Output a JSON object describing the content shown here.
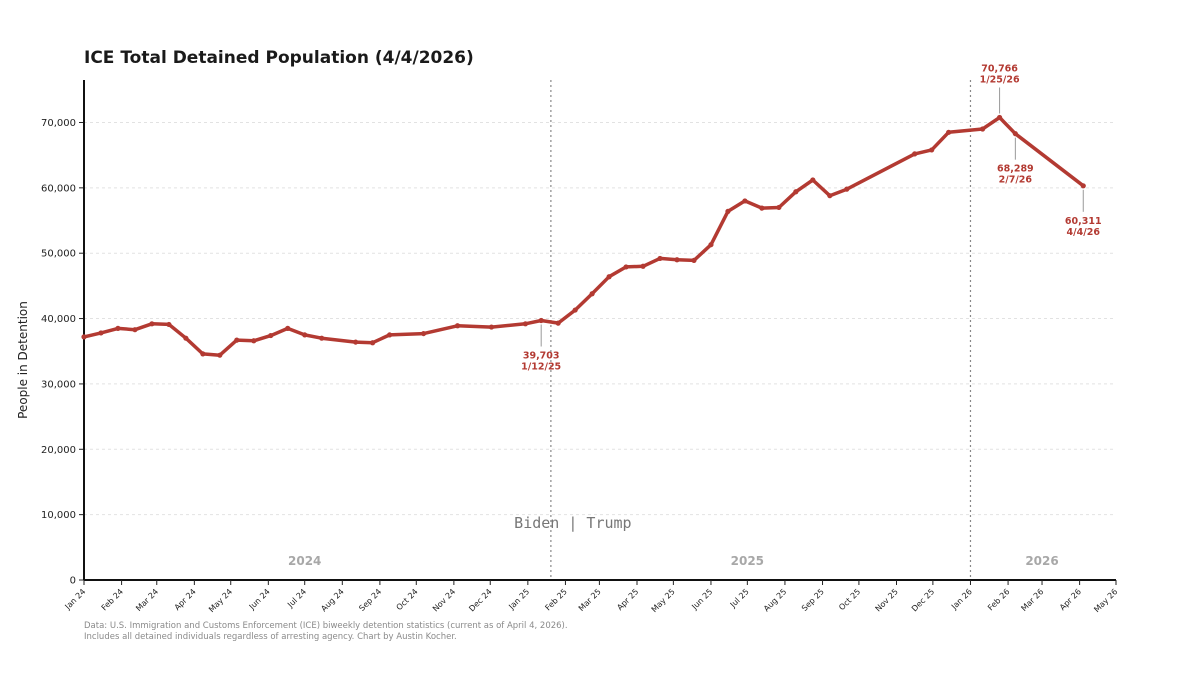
{
  "title": "ICE Total Detained Population (4/4/2026)",
  "source": {
    "line1": "Data: U.S. Immigration and Customs Enforcement (ICE) biweekly detention statistics (current as of April 4, 2026).",
    "line2": "Includes all detained individuals regardless of arresting agency. Chart by Austin Kocher."
  },
  "chart_data": {
    "type": "line",
    "title": "ICE Total Detained Population (4/4/2026)",
    "ylabel": "People in Detention",
    "xlabel": "",
    "ylim": [
      0,
      76500
    ],
    "xlim": [
      "2024-01-01",
      "2026-05-01"
    ],
    "yticks": [
      0,
      10000,
      20000,
      30000,
      40000,
      50000,
      60000,
      70000
    ],
    "ytick_labels": [
      "0",
      "10,000",
      "20,000",
      "30,000",
      "40,000",
      "50,000",
      "60,000",
      "70,000"
    ],
    "xticks": [
      {
        "date": "2024-01-01",
        "label": "Jan 24"
      },
      {
        "date": "2024-02-01",
        "label": "Feb 24"
      },
      {
        "date": "2024-03-01",
        "label": "Mar 24"
      },
      {
        "date": "2024-04-01",
        "label": "Apr 24"
      },
      {
        "date": "2024-05-01",
        "label": "May 24"
      },
      {
        "date": "2024-06-01",
        "label": "Jun 24"
      },
      {
        "date": "2024-07-01",
        "label": "Jul 24"
      },
      {
        "date": "2024-08-01",
        "label": "Aug 24"
      },
      {
        "date": "2024-09-01",
        "label": "Sep 24"
      },
      {
        "date": "2024-10-01",
        "label": "Oct 24"
      },
      {
        "date": "2024-11-01",
        "label": "Nov 24"
      },
      {
        "date": "2024-12-01",
        "label": "Dec 24"
      },
      {
        "date": "2025-01-01",
        "label": "Jan 25"
      },
      {
        "date": "2025-02-01",
        "label": "Feb 25"
      },
      {
        "date": "2025-03-01",
        "label": "Mar 25"
      },
      {
        "date": "2025-04-01",
        "label": "Apr 25"
      },
      {
        "date": "2025-05-01",
        "label": "May 25"
      },
      {
        "date": "2025-06-01",
        "label": "Jun 25"
      },
      {
        "date": "2025-07-01",
        "label": "Jul 25"
      },
      {
        "date": "2025-08-01",
        "label": "Aug 25"
      },
      {
        "date": "2025-09-01",
        "label": "Sep 25"
      },
      {
        "date": "2025-10-01",
        "label": "Oct 25"
      },
      {
        "date": "2025-11-01",
        "label": "Nov 25"
      },
      {
        "date": "2025-12-01",
        "label": "Dec 25"
      },
      {
        "date": "2026-01-01",
        "label": "Jan 26"
      },
      {
        "date": "2026-02-01",
        "label": "Feb 26"
      },
      {
        "date": "2026-03-01",
        "label": "Mar 26"
      },
      {
        "date": "2026-04-01",
        "label": "Apr 26"
      },
      {
        "date": "2026-05-01",
        "label": "May 26"
      }
    ],
    "grid": true,
    "line_color": "#b33a32",
    "series": [
      {
        "points": [
          {
            "x": "2024-01-01",
            "y": 37200
          },
          {
            "x": "2024-01-15",
            "y": 37800
          },
          {
            "x": "2024-01-29",
            "y": 38500
          },
          {
            "x": "2024-02-12",
            "y": 38300
          },
          {
            "x": "2024-02-26",
            "y": 39200
          },
          {
            "x": "2024-03-11",
            "y": 39100
          },
          {
            "x": "2024-03-25",
            "y": 37000
          },
          {
            "x": "2024-04-08",
            "y": 34600
          },
          {
            "x": "2024-04-22",
            "y": 34400
          },
          {
            "x": "2024-05-06",
            "y": 36700
          },
          {
            "x": "2024-05-20",
            "y": 36600
          },
          {
            "x": "2024-06-03",
            "y": 37400
          },
          {
            "x": "2024-06-17",
            "y": 38500
          },
          {
            "x": "2024-07-01",
            "y": 37500
          },
          {
            "x": "2024-07-15",
            "y": 37000
          },
          {
            "x": "2024-08-12",
            "y": 36400
          },
          {
            "x": "2024-08-26",
            "y": 36300
          },
          {
            "x": "2024-09-09",
            "y": 37500
          },
          {
            "x": "2024-10-07",
            "y": 37700
          },
          {
            "x": "2024-11-04",
            "y": 38900
          },
          {
            "x": "2024-12-02",
            "y": 38700
          },
          {
            "x": "2024-12-30",
            "y": 39200
          },
          {
            "x": "2025-01-12",
            "y": 39703
          },
          {
            "x": "2025-01-26",
            "y": 39300
          },
          {
            "x": "2025-02-09",
            "y": 41300
          },
          {
            "x": "2025-02-23",
            "y": 43800
          },
          {
            "x": "2025-03-09",
            "y": 46400
          },
          {
            "x": "2025-03-23",
            "y": 47900
          },
          {
            "x": "2025-04-06",
            "y": 48000
          },
          {
            "x": "2025-04-20",
            "y": 49200
          },
          {
            "x": "2025-05-04",
            "y": 49000
          },
          {
            "x": "2025-05-18",
            "y": 48900
          },
          {
            "x": "2025-06-01",
            "y": 51300
          },
          {
            "x": "2025-06-15",
            "y": 56400
          },
          {
            "x": "2025-06-29",
            "y": 58000
          },
          {
            "x": "2025-07-13",
            "y": 56900
          },
          {
            "x": "2025-07-27",
            "y": 57000
          },
          {
            "x": "2025-08-10",
            "y": 59400
          },
          {
            "x": "2025-08-24",
            "y": 61200
          },
          {
            "x": "2025-09-07",
            "y": 58800
          },
          {
            "x": "2025-09-21",
            "y": 59800
          },
          {
            "x": "2025-11-16",
            "y": 65200
          },
          {
            "x": "2025-11-30",
            "y": 65800
          },
          {
            "x": "2025-12-14",
            "y": 68500
          },
          {
            "x": "2026-01-11",
            "y": 69000
          },
          {
            "x": "2026-01-25",
            "y": 70766
          },
          {
            "x": "2026-02-07",
            "y": 68289
          },
          {
            "x": "2026-04-04",
            "y": 60311
          }
        ]
      }
    ],
    "vlines": [
      {
        "x": "2025-01-20"
      },
      {
        "x": "2026-01-01"
      }
    ],
    "annotations": [
      {
        "id": "ann-jan25",
        "x": "2025-01-12",
        "y": 39703,
        "value": "39,703",
        "date": "1/12/25",
        "position": "below"
      },
      {
        "id": "ann-peak",
        "x": "2026-01-25",
        "y": 70766,
        "value": "70,766",
        "date": "1/25/26",
        "position": "above"
      },
      {
        "id": "ann-feb26",
        "x": "2026-02-07",
        "y": 68289,
        "value": "68,289",
        "date": "2/7/26",
        "position": "below"
      },
      {
        "id": "ann-apr26",
        "x": "2026-04-04",
        "y": 60311,
        "value": "60,311",
        "date": "4/4/26",
        "position": "below"
      }
    ],
    "era_label": "Biden  |  Trump",
    "year_labels": [
      {
        "text": "2024",
        "x": "2024-07-01"
      },
      {
        "text": "2025",
        "x": "2025-07-01"
      },
      {
        "text": "2026",
        "x": "2026-03-01"
      }
    ]
  }
}
